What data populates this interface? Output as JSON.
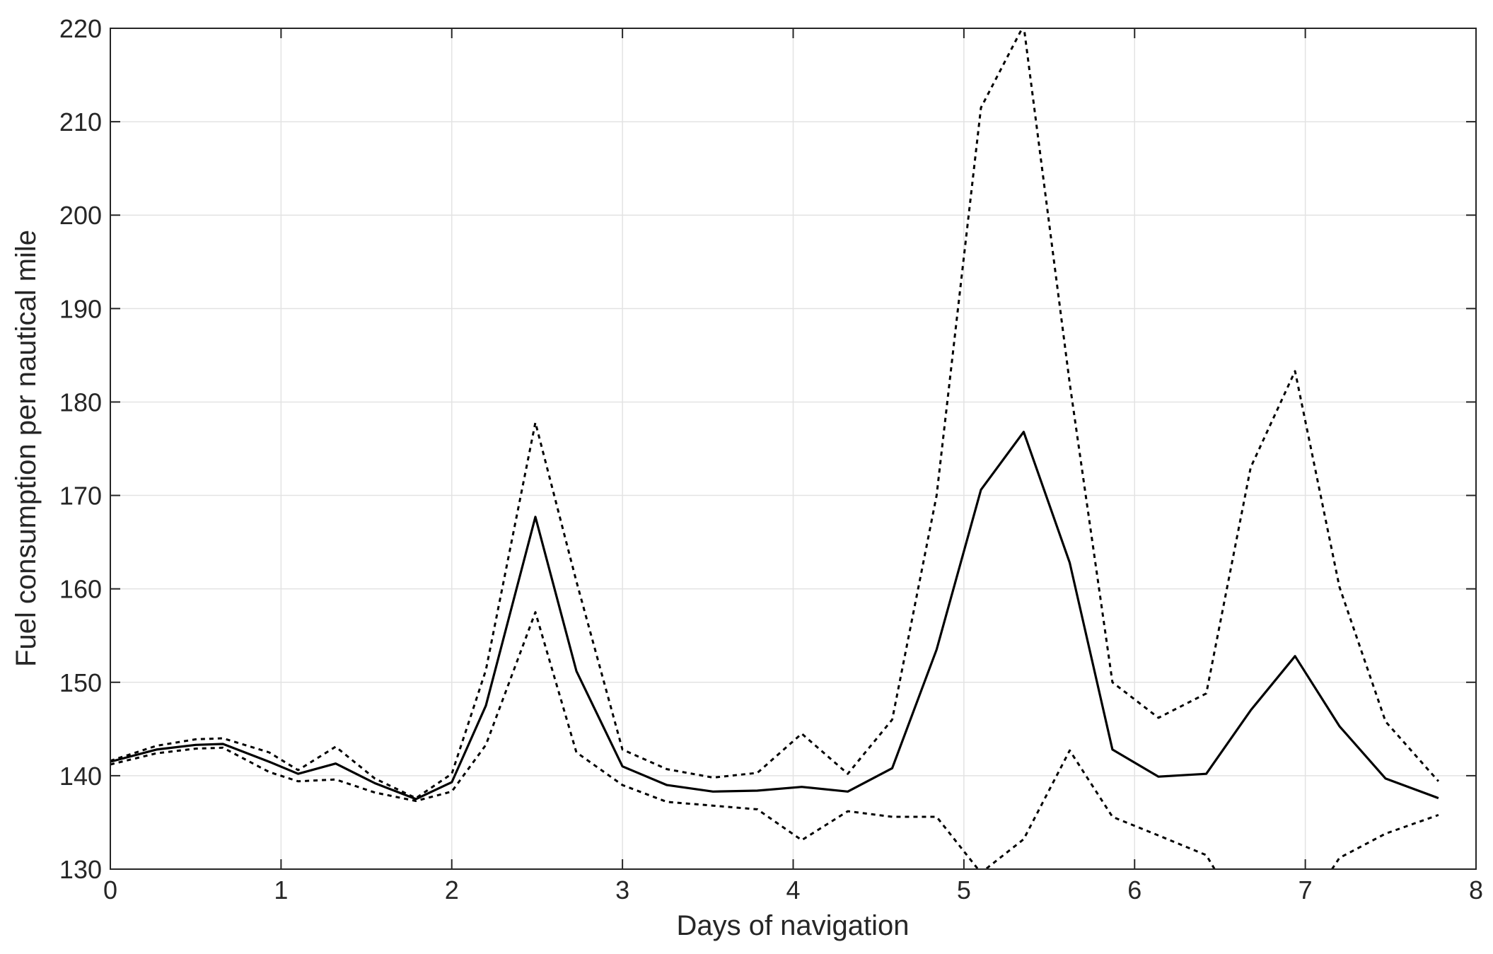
{
  "chart_data": {
    "type": "line",
    "title": "",
    "xlabel": "Days of navigation",
    "ylabel": "Fuel consumption per nautical mile",
    "xlim": [
      0,
      8
    ],
    "ylim": [
      130,
      220
    ],
    "xticks": [
      "0",
      "1",
      "2",
      "3",
      "4",
      "5",
      "6",
      "7",
      "8"
    ],
    "yticks": [
      "130",
      "140",
      "150",
      "160",
      "170",
      "180",
      "190",
      "200",
      "210",
      "220"
    ],
    "grid": true,
    "legend": "none",
    "x": [
      0,
      0.27,
      0.5,
      0.66,
      0.93,
      1.1,
      1.32,
      1.55,
      1.79,
      2.0,
      2.2,
      2.49,
      2.73,
      3.0,
      3.26,
      3.53,
      3.79,
      4.05,
      4.32,
      4.58,
      4.84,
      5.1,
      5.35,
      5.62,
      5.87,
      6.14,
      6.42,
      6.68,
      6.94,
      7.2,
      7.47,
      7.78
    ],
    "series": [
      {
        "style": "solid",
        "values": [
          141.5,
          142.8,
          143.3,
          143.4,
          141.5,
          140.2,
          141.3,
          139.2,
          137.5,
          139.3,
          147.5,
          167.7,
          151.2,
          141.0,
          139.0,
          138.3,
          138.4,
          138.8,
          138.3,
          140.8,
          153.5,
          170.6,
          176.8,
          162.8,
          142.8,
          139.9,
          140.2,
          147.0,
          152.8,
          145.3,
          139.7,
          137.6
        ]
      },
      {
        "style": "dotted",
        "values": [
          141.6,
          143.2,
          143.9,
          144.0,
          142.5,
          140.6,
          143.1,
          139.7,
          137.6,
          140.2,
          151.3,
          177.8,
          160.8,
          142.8,
          140.7,
          139.8,
          140.3,
          144.5,
          140.2,
          146.0,
          170.0,
          211.5,
          220.3,
          182.0,
          150.0,
          146.2,
          148.8,
          173.0,
          183.3,
          160.2,
          145.8,
          139.4
        ]
      },
      {
        "style": "dotted",
        "values": [
          141.2,
          142.4,
          142.9,
          143.0,
          140.4,
          139.4,
          139.6,
          138.2,
          137.3,
          138.3,
          143.3,
          157.5,
          142.5,
          139.0,
          137.2,
          136.8,
          136.4,
          133.1,
          136.2,
          135.6,
          135.6,
          129.6,
          133.2,
          142.7,
          135.6,
          133.6,
          131.5,
          123.5,
          124.0,
          131.2,
          133.8,
          135.8
        ]
      }
    ]
  }
}
